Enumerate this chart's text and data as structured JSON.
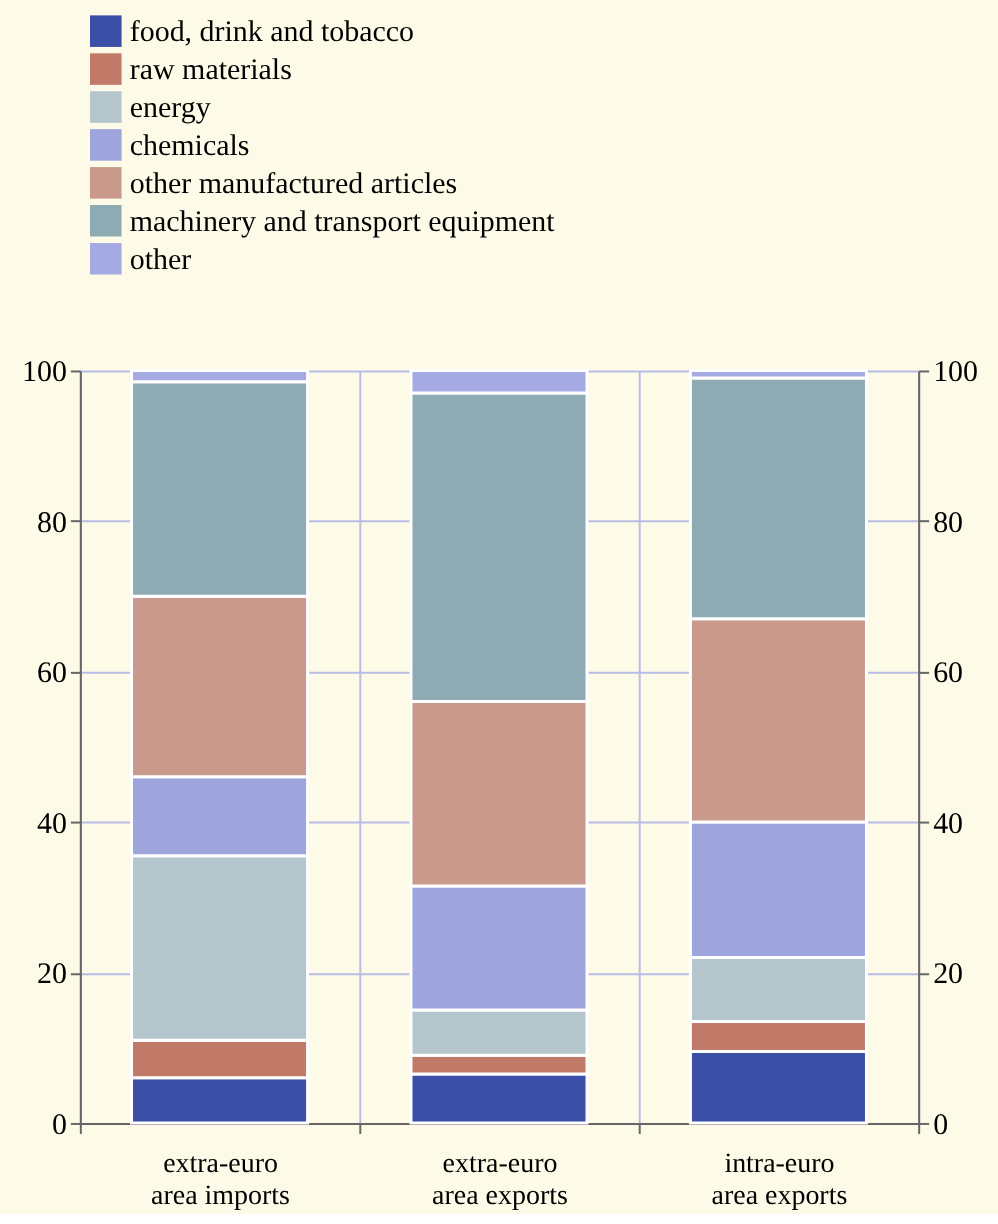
{
  "chart_data": {
    "type": "bar",
    "stacked": true,
    "categories": [
      "extra-euro area imports",
      "extra-euro area exports",
      "intra-euro area exports"
    ],
    "series": [
      {
        "name": "food, drink and tobacco",
        "color": "#3a4fa5",
        "values": [
          6,
          6.5,
          9.5
        ]
      },
      {
        "name": "raw materials",
        "color": "#c27a68",
        "values": [
          5,
          2.5,
          4
        ]
      },
      {
        "name": "energy",
        "color": "#b4c5cc",
        "values": [
          24.5,
          6,
          8.5
        ]
      },
      {
        "name": "chemicals",
        "color": "#9ea4dc",
        "values": [
          10.5,
          16.5,
          18
        ]
      },
      {
        "name": "other manufactured articles",
        "color": "#c99a8c",
        "values": [
          24,
          24.5,
          27
        ]
      },
      {
        "name": "machinery and transport equipment",
        "color": "#8eabb4",
        "values": [
          28.5,
          41,
          32
        ]
      },
      {
        "name": "other",
        "color": "#a5abe2",
        "values": [
          1.5,
          3,
          1
        ]
      }
    ],
    "ylim": [
      0,
      100
    ],
    "yticks": [
      0,
      20,
      40,
      60,
      80,
      100
    ],
    "y2lim": [
      0,
      100
    ],
    "y2ticks": [
      0,
      20,
      40,
      60,
      80,
      100
    ],
    "grid": true,
    "legend": "top left"
  }
}
